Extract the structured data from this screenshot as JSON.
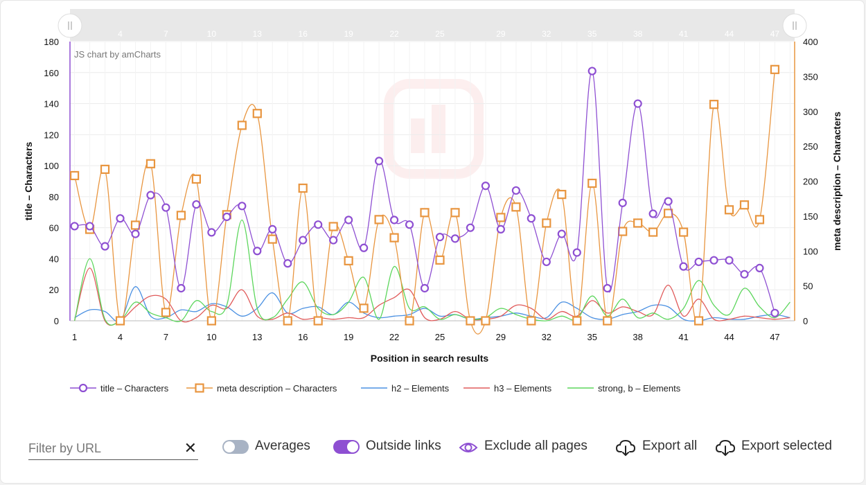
{
  "chart_data": {
    "type": "line",
    "xlabel": "Position in search results",
    "ylabel_left": "title – Characters",
    "ylabel_right": "meta description – Characters",
    "credit": "JS chart by amCharts",
    "ylim_left": [
      0,
      180
    ],
    "ylim_right": [
      0,
      400
    ],
    "yticks_left": [
      "0",
      "20",
      "40",
      "60",
      "80",
      "100",
      "120",
      "140",
      "160",
      "180"
    ],
    "yticks_right": [
      "0",
      "50",
      "100",
      "150",
      "200",
      "250",
      "300",
      "350",
      "400"
    ],
    "xticks": [
      1,
      4,
      7,
      10,
      13,
      16,
      19,
      22,
      25,
      29,
      32,
      35,
      38,
      41,
      44,
      47
    ],
    "scrollbar_ticks": [
      4,
      7,
      10,
      13,
      16,
      19,
      22,
      25,
      29,
      32,
      35,
      38,
      41,
      44,
      47
    ],
    "x": [
      1,
      2,
      3,
      4,
      5,
      6,
      7,
      8,
      9,
      10,
      11,
      12,
      13,
      14,
      15,
      16,
      17,
      18,
      19,
      20,
      21,
      22,
      23,
      24,
      25,
      26,
      27,
      28,
      29,
      30,
      31,
      32,
      33,
      34,
      35,
      36,
      37,
      38,
      39,
      40,
      41,
      42,
      43,
      44,
      45,
      46,
      47,
      48
    ],
    "series": [
      {
        "name": "title – Characters",
        "axis": "left",
        "color": "#8e4fd2",
        "marker": "circle",
        "values": [
          61,
          61,
          48,
          66,
          56,
          81,
          73,
          21,
          75,
          57,
          67,
          74,
          45,
          59,
          37,
          52,
          62,
          52,
          65,
          47,
          103,
          65,
          62,
          21,
          54,
          53,
          60,
          87,
          59,
          84,
          66,
          38,
          56,
          44,
          161,
          21,
          76,
          140,
          69,
          77,
          35,
          38,
          39,
          39,
          30,
          34,
          5,
          null
        ]
      },
      {
        "name": "meta description – Characters",
        "axis": "right",
        "color": "#e8953f",
        "marker": "square",
        "values": [
          208,
          131,
          217,
          0,
          137,
          225,
          12,
          151,
          203,
          0,
          152,
          280,
          297,
          117,
          0,
          190,
          0,
          135,
          86,
          18,
          145,
          119,
          0,
          155,
          87,
          155,
          0,
          0,
          148,
          163,
          0,
          140,
          181,
          0,
          197,
          0,
          128,
          140,
          127,
          154,
          127,
          0,
          310,
          159,
          166,
          145,
          360,
          null
        ]
      },
      {
        "name": "h2 – Elements",
        "axis": "left",
        "color": "#4a90e2",
        "marker": "none",
        "values": [
          2,
          7,
          6,
          0,
          22,
          3,
          2,
          7,
          6,
          11,
          9,
          3,
          8,
          18,
          5,
          8,
          9,
          4,
          12,
          5,
          2,
          3,
          4,
          8,
          3,
          4,
          1,
          2,
          3,
          5,
          3,
          2,
          12,
          8,
          2,
          1,
          4,
          6,
          10,
          9,
          1,
          0,
          2,
          1,
          1,
          3,
          4,
          2
        ]
      },
      {
        "name": "h3 – Elements",
        "axis": "left",
        "color": "#e05a5a",
        "marker": "none",
        "values": [
          0,
          34,
          0,
          0,
          9,
          16,
          14,
          0,
          2,
          10,
          8,
          20,
          3,
          1,
          5,
          1,
          2,
          1,
          2,
          2,
          10,
          15,
          20,
          2,
          1,
          6,
          1,
          1,
          3,
          10,
          8,
          1,
          6,
          3,
          13,
          5,
          9,
          6,
          4,
          23,
          3,
          14,
          1,
          1,
          3,
          2,
          1,
          2
        ]
      },
      {
        "name": "strong, b – Elements",
        "axis": "left",
        "color": "#5cd65c",
        "marker": "none",
        "values": [
          0,
          40,
          1,
          0,
          12,
          5,
          2,
          0,
          13,
          6,
          10,
          65,
          8,
          2,
          14,
          25,
          8,
          4,
          12,
          28,
          1,
          35,
          8,
          9,
          1,
          4,
          1,
          2,
          8,
          4,
          1,
          0,
          3,
          1,
          16,
          3,
          14,
          2,
          5,
          1,
          8,
          26,
          10,
          4,
          21,
          9,
          2,
          12
        ]
      }
    ]
  },
  "controls": {
    "filter_placeholder": "Filter by URL",
    "clear_icon": "close-icon",
    "averages_label": "Averages",
    "averages_on": false,
    "outside_links_label": "Outside links",
    "outside_links_on": true,
    "exclude_label": "Exclude all pages",
    "export_all_label": "Export all",
    "export_selected_label": "Export selected",
    "accent_color": "#8e4fd2",
    "toggle_off_color": "#a8b3c4"
  }
}
